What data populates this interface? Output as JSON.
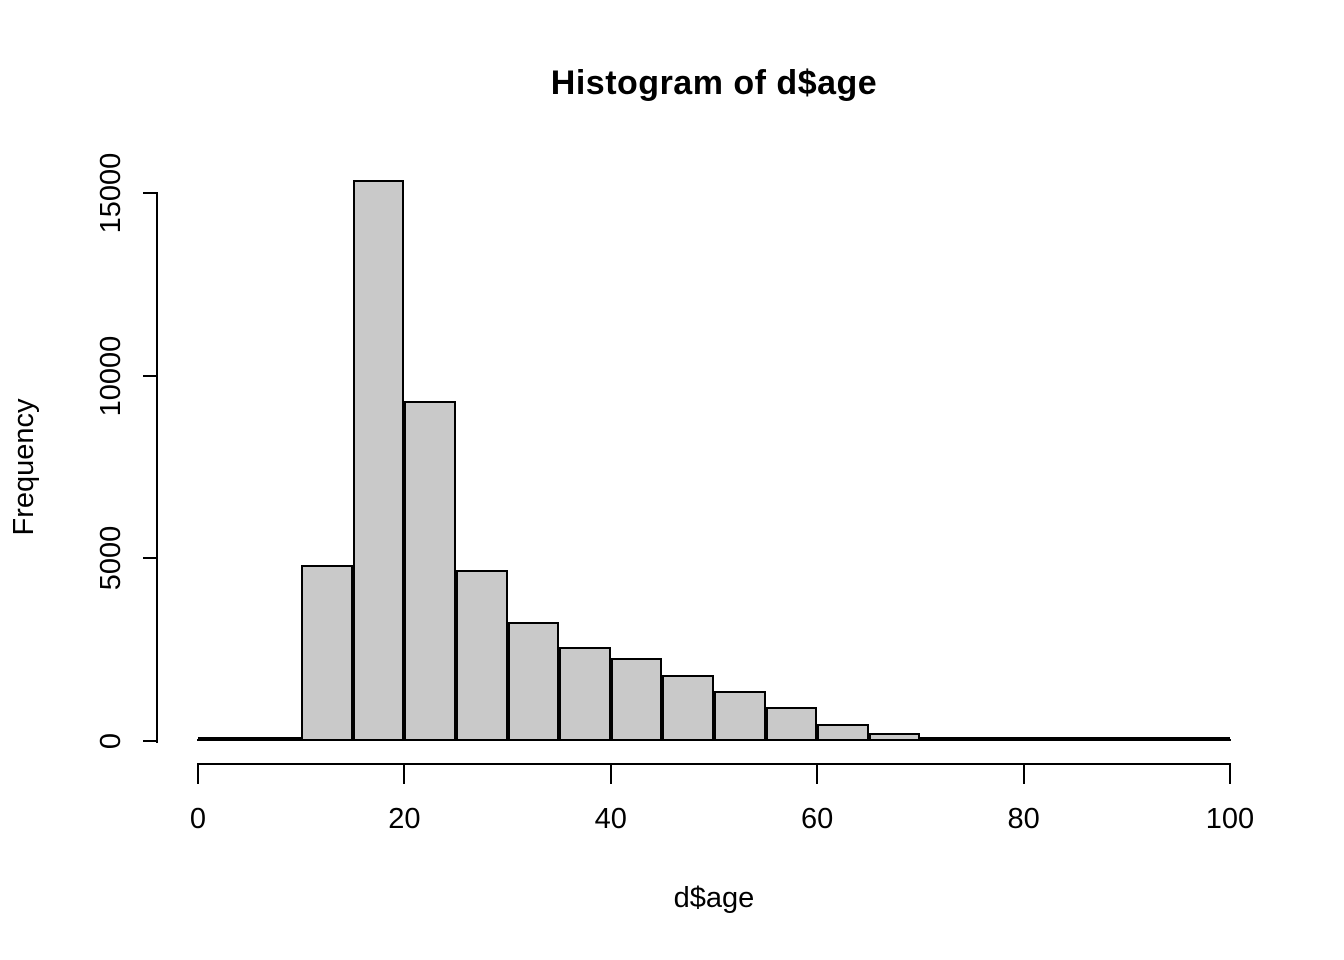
{
  "chart_data": {
    "type": "bar",
    "subtype": "histogram",
    "title": "Histogram of d$age",
    "xlabel": "d$age",
    "ylabel": "Frequency",
    "xlim": [
      0,
      100
    ],
    "ylim": [
      0,
      15000
    ],
    "x_ticks": [
      0,
      20,
      40,
      60,
      80,
      100
    ],
    "y_ticks": [
      0,
      5000,
      10000,
      15000
    ],
    "bin_width": 5,
    "bin_edges": [
      0,
      5,
      10,
      15,
      20,
      25,
      30,
      35,
      40,
      45,
      50,
      55,
      60,
      65,
      70,
      75,
      80,
      85,
      90,
      95,
      100
    ],
    "categories": [
      "0-5",
      "5-10",
      "10-15",
      "15-20",
      "20-25",
      "25-30",
      "30-35",
      "35-40",
      "40-45",
      "45-50",
      "50-55",
      "55-60",
      "60-65",
      "65-70",
      "70-75",
      "75-80",
      "80-85",
      "85-90",
      "90-95",
      "95-100"
    ],
    "values": [
      30,
      90,
      4810,
      15360,
      9310,
      4680,
      3260,
      2560,
      2260,
      1810,
      1380,
      940,
      470,
      225,
      70,
      35,
      15,
      10,
      8,
      5
    ],
    "grid": false,
    "legend": null,
    "colors": {
      "bar_fill": "#C9C9C9",
      "bar_border": "#000000",
      "axis": "#000000",
      "text": "#000000",
      "background": "#FFFFFF"
    }
  }
}
